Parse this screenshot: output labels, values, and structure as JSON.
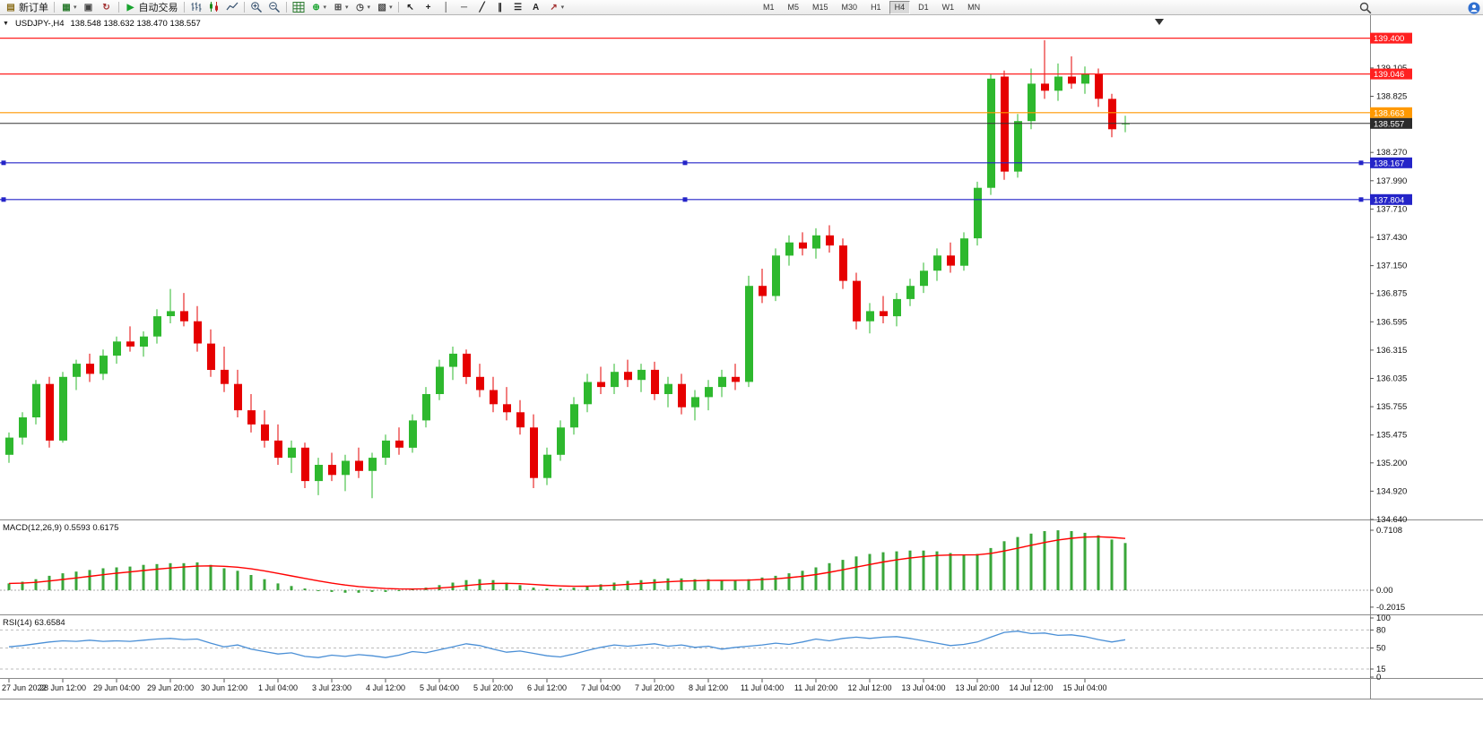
{
  "toolbar": {
    "groups": [
      {
        "name": "order",
        "items": [
          {
            "id": "new-order",
            "label": "新订单"
          }
        ]
      },
      {
        "name": "charts",
        "items": [
          {
            "id": "new-chart",
            "dropdown": true
          },
          {
            "id": "chart-window"
          },
          {
            "id": "refresh"
          }
        ]
      },
      {
        "name": "autotrading",
        "items": [
          {
            "id": "autotrading",
            "label": "自动交易"
          }
        ]
      },
      {
        "name": "chart-type",
        "items": [
          {
            "id": "ohlc-bars"
          },
          {
            "id": "candlesticks"
          },
          {
            "id": "line-chart"
          }
        ]
      },
      {
        "name": "zoom",
        "items": [
          {
            "id": "zoom-in"
          },
          {
            "id": "zoom-out"
          }
        ]
      },
      {
        "name": "layout",
        "items": [
          {
            "id": "grid"
          },
          {
            "id": "indicators",
            "dropdown": true
          },
          {
            "id": "add-indicator",
            "dropdown": true
          },
          {
            "id": "periods",
            "dropdown": true
          },
          {
            "id": "templates",
            "dropdown": true
          }
        ]
      },
      {
        "name": "tools",
        "items": [
          {
            "id": "cursor"
          },
          {
            "id": "crosshair"
          },
          {
            "id": "vertical-line"
          },
          {
            "id": "horizontal-line"
          },
          {
            "id": "trendline"
          },
          {
            "id": "channel"
          },
          {
            "id": "fibonacci"
          },
          {
            "id": "text-tool"
          },
          {
            "id": "arrows",
            "dropdown": true
          }
        ]
      }
    ],
    "timeframes": [
      "M1",
      "M5",
      "M15",
      "M30",
      "H1",
      "H4",
      "D1",
      "W1",
      "MN"
    ],
    "active_timeframe": "H4",
    "right_icons": [
      {
        "id": "search"
      },
      {
        "id": "account"
      }
    ]
  },
  "chart": {
    "symbol_period": "USDJPY-,H4",
    "ohlc": "138.548 138.632 138.470 138.557"
  },
  "macd_panel": {
    "text": "MACD(12,26,9) 0.5593 0.6175",
    "name": "MACD(12,26,9)",
    "value_main": "0.5593",
    "value_signal": "0.6175"
  },
  "rsi_panel": {
    "text": "RSI(14) 63.6584",
    "name": "RSI(14)",
    "value": "63.6584"
  },
  "chart_data": {
    "type": "candlestick",
    "symbol": "USDJPY-",
    "timeframe": "H4",
    "price_range": {
      "min": 134.64,
      "max": 139.627
    },
    "colors": {
      "up": "#2eb82e",
      "down": "#e60000",
      "current": "#333333",
      "macd_hist": "#3aa63a",
      "macd_signal": "#ff0000",
      "rsi": "#4a8fd6"
    },
    "current_price": 138.557,
    "current_price_label": "138.557",
    "hlines": [
      {
        "price": 139.4,
        "label": "139.400",
        "color": "#ff2020",
        "handles": false
      },
      {
        "price": 139.046,
        "label": "139.046",
        "color": "#ff2020",
        "handles": false
      },
      {
        "price": 138.663,
        "label": "138.663",
        "color": "#ff9900",
        "handles": false
      },
      {
        "price": 138.167,
        "label": "138.167",
        "color": "#2424c8",
        "handles": true
      },
      {
        "price": 137.804,
        "label": "137.804",
        "color": "#2424c8",
        "handles": true
      }
    ],
    "y_axis": {
      "ticks": [
        "139.105",
        "138.825",
        "138.270",
        "137.990",
        "137.710",
        "137.430",
        "137.150",
        "136.875",
        "136.595",
        "136.315",
        "136.035",
        "135.755",
        "135.475",
        "135.200",
        "134.920",
        "134.640"
      ]
    },
    "candles": [
      [
        135.28,
        135.5,
        135.2,
        135.45
      ],
      [
        135.45,
        135.7,
        135.38,
        135.65
      ],
      [
        135.65,
        136.02,
        135.58,
        135.98
      ],
      [
        135.98,
        136.05,
        135.35,
        135.42
      ],
      [
        135.42,
        136.1,
        135.4,
        136.05
      ],
      [
        136.05,
        136.22,
        135.92,
        136.18
      ],
      [
        136.18,
        136.28,
        136.0,
        136.08
      ],
      [
        136.08,
        136.32,
        136.02,
        136.26
      ],
      [
        136.26,
        136.45,
        136.18,
        136.4
      ],
      [
        136.4,
        136.55,
        136.3,
        136.35
      ],
      [
        136.35,
        136.5,
        136.25,
        136.45
      ],
      [
        136.45,
        136.72,
        136.38,
        136.65
      ],
      [
        136.65,
        136.92,
        136.58,
        136.7
      ],
      [
        136.7,
        136.88,
        136.55,
        136.6
      ],
      [
        136.6,
        136.75,
        136.3,
        136.38
      ],
      [
        136.38,
        136.52,
        136.05,
        136.12
      ],
      [
        136.12,
        136.35,
        135.9,
        135.98
      ],
      [
        135.98,
        136.12,
        135.65,
        135.72
      ],
      [
        135.72,
        135.88,
        135.5,
        135.58
      ],
      [
        135.58,
        135.72,
        135.35,
        135.42
      ],
      [
        135.42,
        135.58,
        135.18,
        135.25
      ],
      [
        135.25,
        135.42,
        135.1,
        135.35
      ],
      [
        135.35,
        135.4,
        134.95,
        135.02
      ],
      [
        135.02,
        135.25,
        134.88,
        135.18
      ],
      [
        135.18,
        135.3,
        135.02,
        135.08
      ],
      [
        135.08,
        135.28,
        134.92,
        135.22
      ],
      [
        135.22,
        135.35,
        135.05,
        135.12
      ],
      [
        135.12,
        135.3,
        134.85,
        135.25
      ],
      [
        135.25,
        135.48,
        135.18,
        135.42
      ],
      [
        135.42,
        135.55,
        135.28,
        135.35
      ],
      [
        135.35,
        135.68,
        135.3,
        135.62
      ],
      [
        135.62,
        135.95,
        135.55,
        135.88
      ],
      [
        135.88,
        136.22,
        135.82,
        136.15
      ],
      [
        136.15,
        136.35,
        136.02,
        136.28
      ],
      [
        136.28,
        136.32,
        135.98,
        136.05
      ],
      [
        136.05,
        136.18,
        135.85,
        135.92
      ],
      [
        135.92,
        136.05,
        135.7,
        135.78
      ],
      [
        135.78,
        135.95,
        135.62,
        135.7
      ],
      [
        135.7,
        135.82,
        135.48,
        135.55
      ],
      [
        135.55,
        135.68,
        134.95,
        135.05
      ],
      [
        135.05,
        135.35,
        134.98,
        135.28
      ],
      [
        135.28,
        135.62,
        135.22,
        135.55
      ],
      [
        135.55,
        135.85,
        135.48,
        135.78
      ],
      [
        135.78,
        136.08,
        135.7,
        136.0
      ],
      [
        136.0,
        136.15,
        135.88,
        135.95
      ],
      [
        135.95,
        136.18,
        135.88,
        136.1
      ],
      [
        136.1,
        136.22,
        135.95,
        136.02
      ],
      [
        136.02,
        136.18,
        135.9,
        136.12
      ],
      [
        136.12,
        136.2,
        135.82,
        135.88
      ],
      [
        135.88,
        136.05,
        135.75,
        135.98
      ],
      [
        135.98,
        136.08,
        135.68,
        135.75
      ],
      [
        135.75,
        135.92,
        135.62,
        135.85
      ],
      [
        135.85,
        136.02,
        135.72,
        135.95
      ],
      [
        135.95,
        136.12,
        135.85,
        136.05
      ],
      [
        136.05,
        136.18,
        135.92,
        136.0
      ],
      [
        136.0,
        137.05,
        135.95,
        136.95
      ],
      [
        136.95,
        137.12,
        136.78,
        136.85
      ],
      [
        136.85,
        137.32,
        136.8,
        137.25
      ],
      [
        137.25,
        137.45,
        137.15,
        137.38
      ],
      [
        137.38,
        137.48,
        137.25,
        137.32
      ],
      [
        137.32,
        137.52,
        137.22,
        137.45
      ],
      [
        137.45,
        137.55,
        137.28,
        137.35
      ],
      [
        137.35,
        137.42,
        136.92,
        137.0
      ],
      [
        137.0,
        137.08,
        136.52,
        136.6
      ],
      [
        136.6,
        136.78,
        136.48,
        136.7
      ],
      [
        136.7,
        136.85,
        136.58,
        136.65
      ],
      [
        136.65,
        136.88,
        136.55,
        136.82
      ],
      [
        136.82,
        137.02,
        136.75,
        136.95
      ],
      [
        136.95,
        137.18,
        136.88,
        137.1
      ],
      [
        137.1,
        137.32,
        137.0,
        137.25
      ],
      [
        137.25,
        137.38,
        137.08,
        137.15
      ],
      [
        137.15,
        137.48,
        137.1,
        137.42
      ],
      [
        137.42,
        137.98,
        137.35,
        137.92
      ],
      [
        137.92,
        139.05,
        137.85,
        139.0
      ],
      [
        139.02,
        139.08,
        138.0,
        138.08
      ],
      [
        138.08,
        138.65,
        138.02,
        138.58
      ],
      [
        138.58,
        139.1,
        138.5,
        138.95
      ],
      [
        138.95,
        139.38,
        138.8,
        138.88
      ],
      [
        138.88,
        139.15,
        138.78,
        139.02
      ],
      [
        139.02,
        139.22,
        138.9,
        138.95
      ],
      [
        138.95,
        139.12,
        138.85,
        139.05
      ],
      [
        139.05,
        139.1,
        138.72,
        138.8
      ],
      [
        138.8,
        138.85,
        138.42,
        138.5
      ],
      [
        138.548,
        138.632,
        138.47,
        138.557
      ]
    ],
    "x_labels": [
      {
        "bar": 0,
        "text": "27 Jun 2022"
      },
      {
        "bar": 4,
        "text": "28 Jun 12:00"
      },
      {
        "bar": 8,
        "text": "29 Jun 04:00"
      },
      {
        "bar": 12,
        "text": "29 Jun 20:00"
      },
      {
        "bar": 16,
        "text": "30 Jun 12:00"
      },
      {
        "bar": 20,
        "text": "1 Jul 04:00"
      },
      {
        "bar": 24,
        "text": "3 Jul 23:00"
      },
      {
        "bar": 28,
        "text": "4 Jul 12:00"
      },
      {
        "bar": 32,
        "text": "5 Jul 04:00"
      },
      {
        "bar": 36,
        "text": "5 Jul 20:00"
      },
      {
        "bar": 40,
        "text": "6 Jul 12:00"
      },
      {
        "bar": 44,
        "text": "7 Jul 04:00"
      },
      {
        "bar": 48,
        "text": "7 Jul 20:00"
      },
      {
        "bar": 52,
        "text": "8 Jul 12:00"
      },
      {
        "bar": 56,
        "text": "11 Jul 04:00"
      },
      {
        "bar": 60,
        "text": "11 Jul 20:00"
      },
      {
        "bar": 64,
        "text": "12 Jul 12:00"
      },
      {
        "bar": 68,
        "text": "13 Jul 04:00"
      },
      {
        "bar": 72,
        "text": "13 Jul 20:00"
      },
      {
        "bar": 76,
        "text": "14 Jul 12:00"
      },
      {
        "bar": 80,
        "text": "15 Jul 04:00"
      }
    ],
    "macd": {
      "range": {
        "min": -0.287,
        "max": 0.817
      },
      "signal_period": 9,
      "axis": [
        "0.7108",
        "0.00",
        "-0.2015"
      ],
      "values": [
        0.08,
        0.1,
        0.13,
        0.17,
        0.2,
        0.22,
        0.24,
        0.26,
        0.27,
        0.28,
        0.3,
        0.31,
        0.32,
        0.32,
        0.33,
        0.3,
        0.26,
        0.23,
        0.18,
        0.13,
        0.08,
        0.05,
        0.02,
        -0.01,
        -0.02,
        -0.03,
        -0.03,
        -0.02,
        -0.02,
        -0.01,
        0.01,
        0.03,
        0.06,
        0.09,
        0.12,
        0.13,
        0.12,
        0.09,
        0.06,
        0.03,
        0.02,
        0.02,
        0.03,
        0.05,
        0.07,
        0.09,
        0.11,
        0.12,
        0.13,
        0.14,
        0.14,
        0.13,
        0.13,
        0.12,
        0.12,
        0.13,
        0.15,
        0.17,
        0.2,
        0.23,
        0.27,
        0.32,
        0.36,
        0.4,
        0.43,
        0.45,
        0.46,
        0.47,
        0.47,
        0.46,
        0.44,
        0.42,
        0.43,
        0.5,
        0.58,
        0.63,
        0.67,
        0.7,
        0.71,
        0.7,
        0.68,
        0.65,
        0.6,
        0.5593
      ]
    },
    "rsi": {
      "levels": [
        80,
        50,
        15
      ],
      "axis": [
        "100",
        "80",
        "50",
        "15",
        "0"
      ],
      "values": [
        52,
        54,
        57,
        60,
        62,
        61,
        63,
        61,
        62,
        61,
        63,
        65,
        66,
        64,
        65,
        58,
        52,
        55,
        48,
        44,
        40,
        42,
        36,
        34,
        38,
        36,
        39,
        37,
        34,
        38,
        44,
        42,
        47,
        52,
        57,
        54,
        48,
        43,
        45,
        41,
        37,
        35,
        40,
        46,
        51,
        55,
        53,
        55,
        57,
        53,
        55,
        51,
        53,
        48,
        51,
        53,
        55,
        58,
        56,
        60,
        65,
        62,
        66,
        68,
        66,
        68,
        69,
        66,
        62,
        58,
        54,
        56,
        60,
        68,
        76,
        78,
        74,
        75,
        71,
        72,
        69,
        64,
        60,
        63.66
      ]
    }
  }
}
